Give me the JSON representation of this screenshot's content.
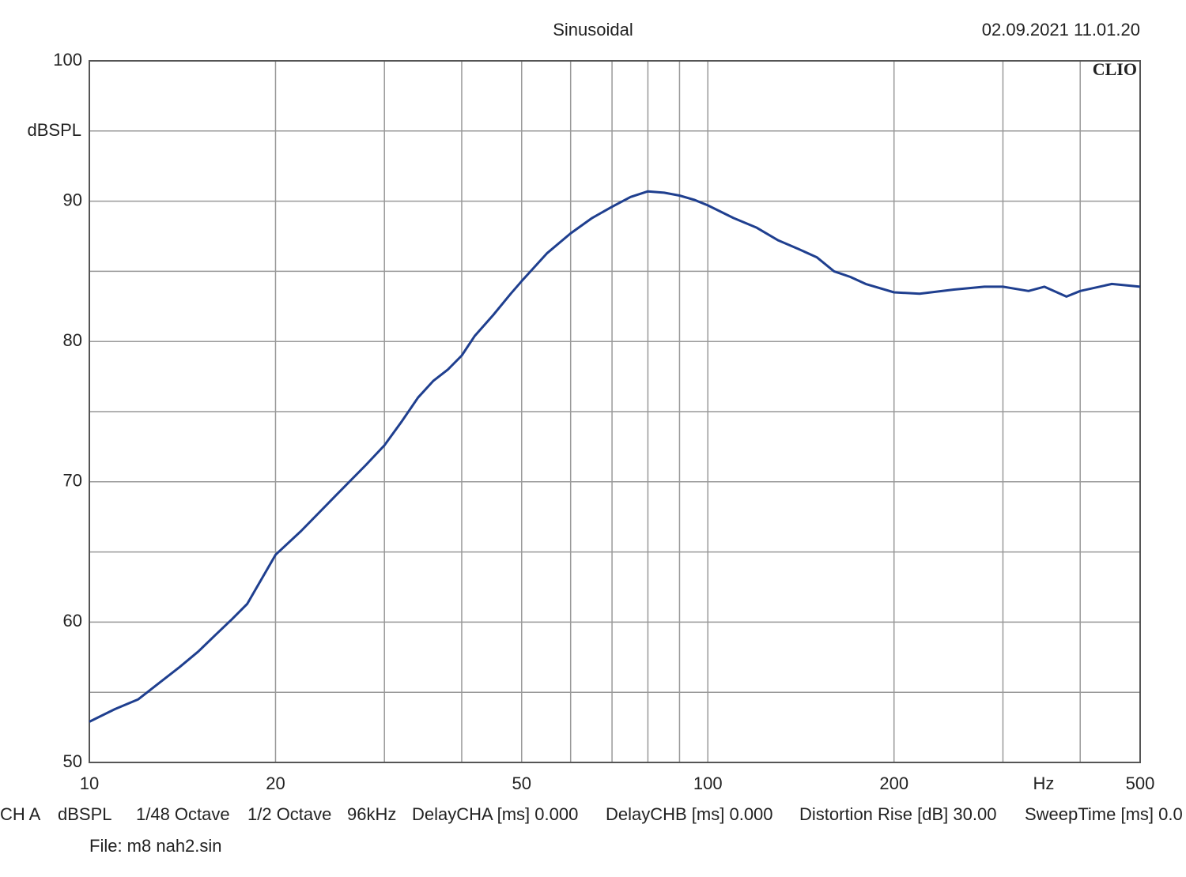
{
  "chart_data": {
    "type": "line",
    "title": "Sinusoidal",
    "timestamp": "02.09.2021 11.01.20",
    "brand": "CLIO",
    "x_label": "Hz",
    "y_label": "dBSPL",
    "xscale": "log",
    "grid": true,
    "xlim": [
      10,
      500
    ],
    "xticks": [
      10,
      20,
      50,
      100,
      200,
      500
    ],
    "xgrid": [
      30,
      40,
      60,
      70,
      80,
      90,
      300,
      400
    ],
    "ylim": [
      50,
      100
    ],
    "yticks": [
      50,
      60,
      70,
      80,
      90,
      100
    ],
    "ygrid": [
      55,
      65,
      75,
      85,
      95
    ],
    "x": [
      10,
      11,
      12,
      13,
      14,
      15,
      16,
      17,
      18,
      20,
      22,
      25,
      28,
      30,
      32,
      34,
      36,
      38,
      40,
      42,
      45,
      48,
      50,
      55,
      60,
      65,
      70,
      75,
      80,
      85,
      90,
      95,
      100,
      110,
      120,
      130,
      140,
      150,
      160,
      170,
      180,
      200,
      220,
      250,
      280,
      300,
      330,
      350,
      380,
      400,
      450,
      500
    ],
    "series": [
      {
        "name": "CH A",
        "color": "#1f3f8f",
        "values": [
          52.9,
          53.8,
          54.5,
          55.7,
          56.8,
          57.9,
          59.1,
          60.2,
          61.3,
          64.8,
          66.5,
          69.0,
          71.2,
          72.6,
          74.3,
          76.0,
          77.2,
          78.0,
          79.0,
          80.4,
          81.9,
          83.4,
          84.3,
          86.3,
          87.7,
          88.8,
          89.6,
          90.3,
          90.7,
          90.6,
          90.4,
          90.1,
          89.7,
          88.8,
          88.1,
          87.2,
          86.6,
          86.0,
          85.0,
          84.6,
          84.1,
          83.5,
          83.4,
          83.7,
          83.9,
          83.9,
          83.6,
          83.9,
          83.2,
          83.6,
          84.1,
          83.9
        ]
      }
    ]
  },
  "settings": [
    "CH A",
    "dBSPL",
    "1/48 Octave",
    "1/2 Octave",
    "96kHz",
    "DelayCHA [ms] 0.000",
    "DelayCHB [ms] 0.000",
    "Distortion Rise [dB] 30.00",
    "SweepTime [ms] 0.0"
  ],
  "file": "File: m8 nah2.sin"
}
